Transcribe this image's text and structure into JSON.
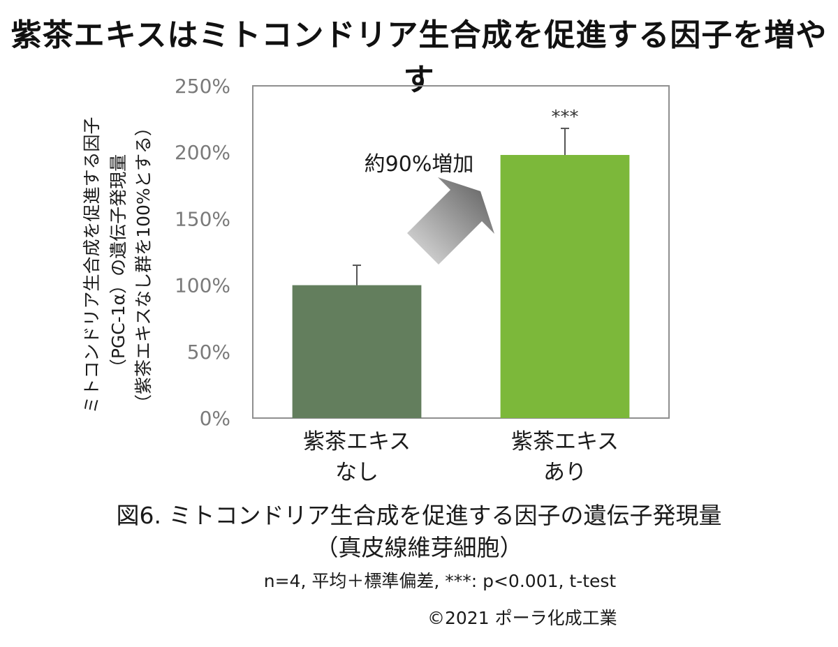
{
  "title": "紫茶エキスはミトコンドリア生合成を促進する因子を増やす",
  "chart_data": {
    "type": "bar",
    "categories": [
      [
        "紫茶エキス",
        "なし"
      ],
      [
        "紫茶エキス",
        "あり"
      ]
    ],
    "values": [
      100,
      198
    ],
    "errors": [
      15,
      20
    ],
    "significance": [
      "",
      "***"
    ],
    "ylabel_lines": [
      "ミトコンドリア生合成を促進する因子",
      "（PGC-1α）の遺伝子発現量",
      "（紫茶エキスなし群を100%とする）"
    ],
    "yticks": [
      "0%",
      "50%",
      "100%",
      "150%",
      "200%",
      "250%"
    ],
    "ylim": [
      0,
      250
    ],
    "annotation": "約90%増加",
    "bar_colors": [
      "#637e5d",
      "#7cb83a"
    ],
    "grid": false
  },
  "caption": {
    "line1": "図6. ミトコンドリア生合成を促進する因子の遺伝子発現量",
    "line2": "（真皮線維芽細胞）"
  },
  "note": "n=4, 平均＋標準偏差, ***: p<0.001, t-test",
  "copyright": "©2021 ポーラ化成工業"
}
